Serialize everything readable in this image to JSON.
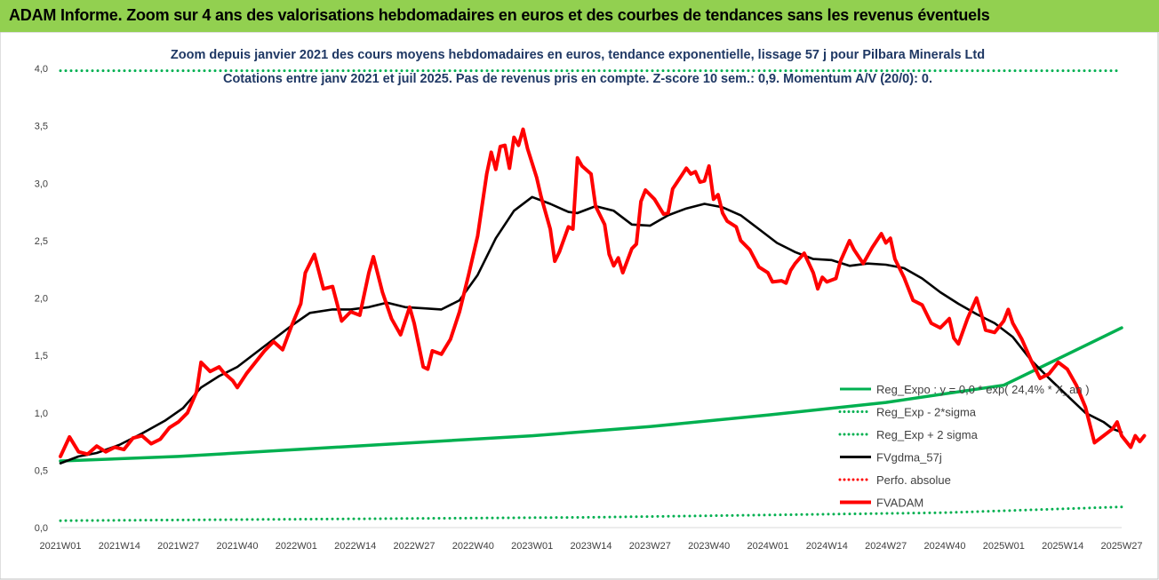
{
  "header": {
    "title": "ADAM Informe. Zoom sur 4 ans des valorisations hebdomadaires en euros et des courbes de tendances sans les revenus éventuels",
    "background": "#92d050"
  },
  "chart_data": {
    "type": "line",
    "title_line1": "Zoom depuis janvier 2021 des cours moyens hebdomadaires en euros, tendance exponentielle, lissage 57 j pour Pilbara Minerals Ltd",
    "title_line2": "Cotations entre janv 2021 et juil 2025. Pas de revenus pris en compte. Z-score 10 sem.: 0,9. Momentum A/V (20/0): 0.",
    "x_tick_labels": [
      "2021W01",
      "2021W14",
      "2021W27",
      "2021W40",
      "2022W01",
      "2022W14",
      "2022W27",
      "2022W40",
      "2023W01",
      "2023W14",
      "2023W27",
      "2023W40",
      "2024W01",
      "2024W14",
      "2024W27",
      "2024W40",
      "2025W01",
      "2025W14",
      "2025W27"
    ],
    "y_tick_labels": [
      "0,0",
      "0,5",
      "1,0",
      "1,5",
      "2,0",
      "2,5",
      "3,0",
      "3,5",
      "4,0"
    ],
    "ylim": [
      0,
      4
    ],
    "x_range": [
      0,
      234
    ],
    "legend_position": "bottom-right",
    "grid": false,
    "series": [
      {
        "name": "Reg_Expo : y = 0,0 * exp( 24,4% * X_an )",
        "color": "#00b050",
        "style": "solid",
        "points": [
          [
            0,
            0.58
          ],
          [
            26,
            0.62
          ],
          [
            52,
            0.68
          ],
          [
            78,
            0.74
          ],
          [
            104,
            0.8
          ],
          [
            130,
            0.88
          ],
          [
            156,
            0.98
          ],
          [
            182,
            1.09
          ],
          [
            208,
            1.24
          ],
          [
            234,
            1.74
          ]
        ]
      },
      {
        "name": "Reg_Exp - 2*sigma",
        "color": "#00b050",
        "style": "dotted",
        "points": [
          [
            0,
            0.06
          ],
          [
            39,
            0.07
          ],
          [
            78,
            0.08
          ],
          [
            117,
            0.09
          ],
          [
            156,
            0.11
          ],
          [
            195,
            0.13
          ],
          [
            234,
            0.18
          ]
        ]
      },
      {
        "name": "Reg_Exp + 2 sigma",
        "color": "#00b050",
        "style": "dotted",
        "points": [
          [
            0,
            3.98
          ],
          [
            234,
            3.98
          ]
        ]
      },
      {
        "name": "FVgdma_57j",
        "color": "#000000",
        "style": "solid",
        "points": [
          [
            0,
            0.56
          ],
          [
            4,
            0.62
          ],
          [
            8,
            0.65
          ],
          [
            13,
            0.72
          ],
          [
            18,
            0.82
          ],
          [
            23,
            0.93
          ],
          [
            27,
            1.04
          ],
          [
            31,
            1.22
          ],
          [
            35,
            1.32
          ],
          [
            39,
            1.4
          ],
          [
            43,
            1.52
          ],
          [
            47,
            1.64
          ],
          [
            51,
            1.76
          ],
          [
            55,
            1.87
          ],
          [
            60,
            1.9
          ],
          [
            64,
            1.9
          ],
          [
            68,
            1.92
          ],
          [
            72,
            1.96
          ],
          [
            76,
            1.92
          ],
          [
            80,
            1.91
          ],
          [
            84,
            1.9
          ],
          [
            88,
            1.98
          ],
          [
            92,
            2.2
          ],
          [
            96,
            2.52
          ],
          [
            100,
            2.76
          ],
          [
            104,
            2.88
          ],
          [
            108,
            2.82
          ],
          [
            112,
            2.75
          ],
          [
            114,
            2.74
          ],
          [
            118,
            2.8
          ],
          [
            122,
            2.76
          ],
          [
            126,
            2.64
          ],
          [
            130,
            2.63
          ],
          [
            134,
            2.72
          ],
          [
            138,
            2.78
          ],
          [
            142,
            2.82
          ],
          [
            146,
            2.79
          ],
          [
            150,
            2.72
          ],
          [
            154,
            2.6
          ],
          [
            158,
            2.48
          ],
          [
            162,
            2.4
          ],
          [
            166,
            2.34
          ],
          [
            170,
            2.33
          ],
          [
            174,
            2.28
          ],
          [
            178,
            2.3
          ],
          [
            182,
            2.29
          ],
          [
            186,
            2.26
          ],
          [
            190,
            2.17
          ],
          [
            194,
            2.05
          ],
          [
            198,
            1.95
          ],
          [
            202,
            1.86
          ],
          [
            206,
            1.78
          ],
          [
            210,
            1.66
          ],
          [
            214,
            1.46
          ],
          [
            218,
            1.3
          ],
          [
            222,
            1.15
          ],
          [
            226,
            1.0
          ],
          [
            230,
            0.92
          ],
          [
            232,
            0.86
          ],
          [
            234,
            0.83
          ]
        ]
      },
      {
        "name": "Perfo. absolue",
        "color": "#ff0000",
        "style": "dotted",
        "points": []
      },
      {
        "name": "FVADAM",
        "color": "#ff0000",
        "style": "solid",
        "points": [
          [
            0,
            0.62
          ],
          [
            2,
            0.79
          ],
          [
            4,
            0.66
          ],
          [
            6,
            0.64
          ],
          [
            8,
            0.71
          ],
          [
            10,
            0.66
          ],
          [
            12,
            0.7
          ],
          [
            14,
            0.68
          ],
          [
            16,
            0.78
          ],
          [
            18,
            0.8
          ],
          [
            20,
            0.73
          ],
          [
            22,
            0.77
          ],
          [
            24,
            0.87
          ],
          [
            26,
            0.92
          ],
          [
            28,
            1.0
          ],
          [
            30,
            1.18
          ],
          [
            31,
            1.44
          ],
          [
            33,
            1.36
          ],
          [
            35,
            1.4
          ],
          [
            36,
            1.35
          ],
          [
            38,
            1.28
          ],
          [
            39,
            1.22
          ],
          [
            41,
            1.34
          ],
          [
            43,
            1.44
          ],
          [
            45,
            1.54
          ],
          [
            47,
            1.62
          ],
          [
            49,
            1.55
          ],
          [
            51,
            1.76
          ],
          [
            53,
            1.95
          ],
          [
            54,
            2.22
          ],
          [
            56,
            2.38
          ],
          [
            58,
            2.08
          ],
          [
            60,
            2.1
          ],
          [
            62,
            1.8
          ],
          [
            64,
            1.88
          ],
          [
            66,
            1.85
          ],
          [
            68,
            2.22
          ],
          [
            69,
            2.36
          ],
          [
            71,
            2.05
          ],
          [
            73,
            1.82
          ],
          [
            75,
            1.68
          ],
          [
            77,
            1.92
          ],
          [
            78,
            1.78
          ],
          [
            80,
            1.4
          ],
          [
            81,
            1.38
          ],
          [
            82,
            1.54
          ],
          [
            84,
            1.51
          ],
          [
            86,
            1.64
          ],
          [
            88,
            1.88
          ],
          [
            90,
            2.2
          ],
          [
            92,
            2.54
          ],
          [
            94,
            3.08
          ],
          [
            95,
            3.27
          ],
          [
            96,
            3.12
          ],
          [
            97,
            3.32
          ],
          [
            98,
            3.33
          ],
          [
            99,
            3.13
          ],
          [
            100,
            3.4
          ],
          [
            101,
            3.33
          ],
          [
            102,
            3.47
          ],
          [
            103,
            3.3
          ],
          [
            105,
            3.05
          ],
          [
            106,
            2.88
          ],
          [
            108,
            2.6
          ],
          [
            109,
            2.32
          ],
          [
            110,
            2.4
          ],
          [
            112,
            2.62
          ],
          [
            113,
            2.6
          ],
          [
            114,
            3.22
          ],
          [
            115,
            3.15
          ],
          [
            117,
            3.08
          ],
          [
            118,
            2.8
          ],
          [
            120,
            2.64
          ],
          [
            121,
            2.38
          ],
          [
            122,
            2.28
          ],
          [
            123,
            2.35
          ],
          [
            124,
            2.22
          ],
          [
            126,
            2.43
          ],
          [
            127,
            2.47
          ],
          [
            128,
            2.84
          ],
          [
            129,
            2.94
          ],
          [
            131,
            2.86
          ],
          [
            133,
            2.73
          ],
          [
            134,
            2.74
          ],
          [
            135,
            2.95
          ],
          [
            137,
            3.07
          ],
          [
            138,
            3.13
          ],
          [
            139,
            3.08
          ],
          [
            140,
            3.1
          ],
          [
            141,
            3.01
          ],
          [
            142,
            3.02
          ],
          [
            143,
            3.15
          ],
          [
            144,
            2.86
          ],
          [
            145,
            2.9
          ],
          [
            146,
            2.74
          ],
          [
            147,
            2.67
          ],
          [
            149,
            2.62
          ],
          [
            150,
            2.5
          ],
          [
            152,
            2.42
          ],
          [
            154,
            2.27
          ],
          [
            156,
            2.22
          ],
          [
            157,
            2.14
          ],
          [
            159,
            2.15
          ],
          [
            160,
            2.13
          ],
          [
            161,
            2.24
          ],
          [
            162,
            2.3
          ],
          [
            164,
            2.39
          ],
          [
            166,
            2.22
          ],
          [
            167,
            2.08
          ],
          [
            168,
            2.18
          ],
          [
            169,
            2.14
          ],
          [
            171,
            2.17
          ],
          [
            172,
            2.32
          ],
          [
            174,
            2.5
          ],
          [
            175,
            2.42
          ],
          [
            177,
            2.3
          ],
          [
            179,
            2.44
          ],
          [
            181,
            2.56
          ],
          [
            182,
            2.48
          ],
          [
            183,
            2.52
          ],
          [
            184,
            2.34
          ],
          [
            186,
            2.18
          ],
          [
            188,
            1.98
          ],
          [
            190,
            1.94
          ],
          [
            192,
            1.78
          ],
          [
            194,
            1.74
          ],
          [
            196,
            1.82
          ],
          [
            197,
            1.65
          ],
          [
            198,
            1.6
          ],
          [
            200,
            1.82
          ],
          [
            202,
            2.0
          ],
          [
            203,
            1.87
          ],
          [
            204,
            1.72
          ],
          [
            206,
            1.7
          ],
          [
            208,
            1.8
          ],
          [
            209,
            1.9
          ],
          [
            210,
            1.78
          ],
          [
            212,
            1.64
          ],
          [
            214,
            1.46
          ],
          [
            216,
            1.3
          ],
          [
            218,
            1.34
          ],
          [
            220,
            1.44
          ],
          [
            222,
            1.38
          ],
          [
            224,
            1.24
          ],
          [
            226,
            1.05
          ],
          [
            228,
            0.74
          ],
          [
            230,
            0.8
          ],
          [
            232,
            0.86
          ],
          [
            233,
            0.92
          ],
          [
            234,
            0.8
          ],
          [
            236,
            0.7
          ],
          [
            237,
            0.8
          ],
          [
            238,
            0.75
          ],
          [
            239,
            0.8
          ]
        ]
      }
    ]
  }
}
